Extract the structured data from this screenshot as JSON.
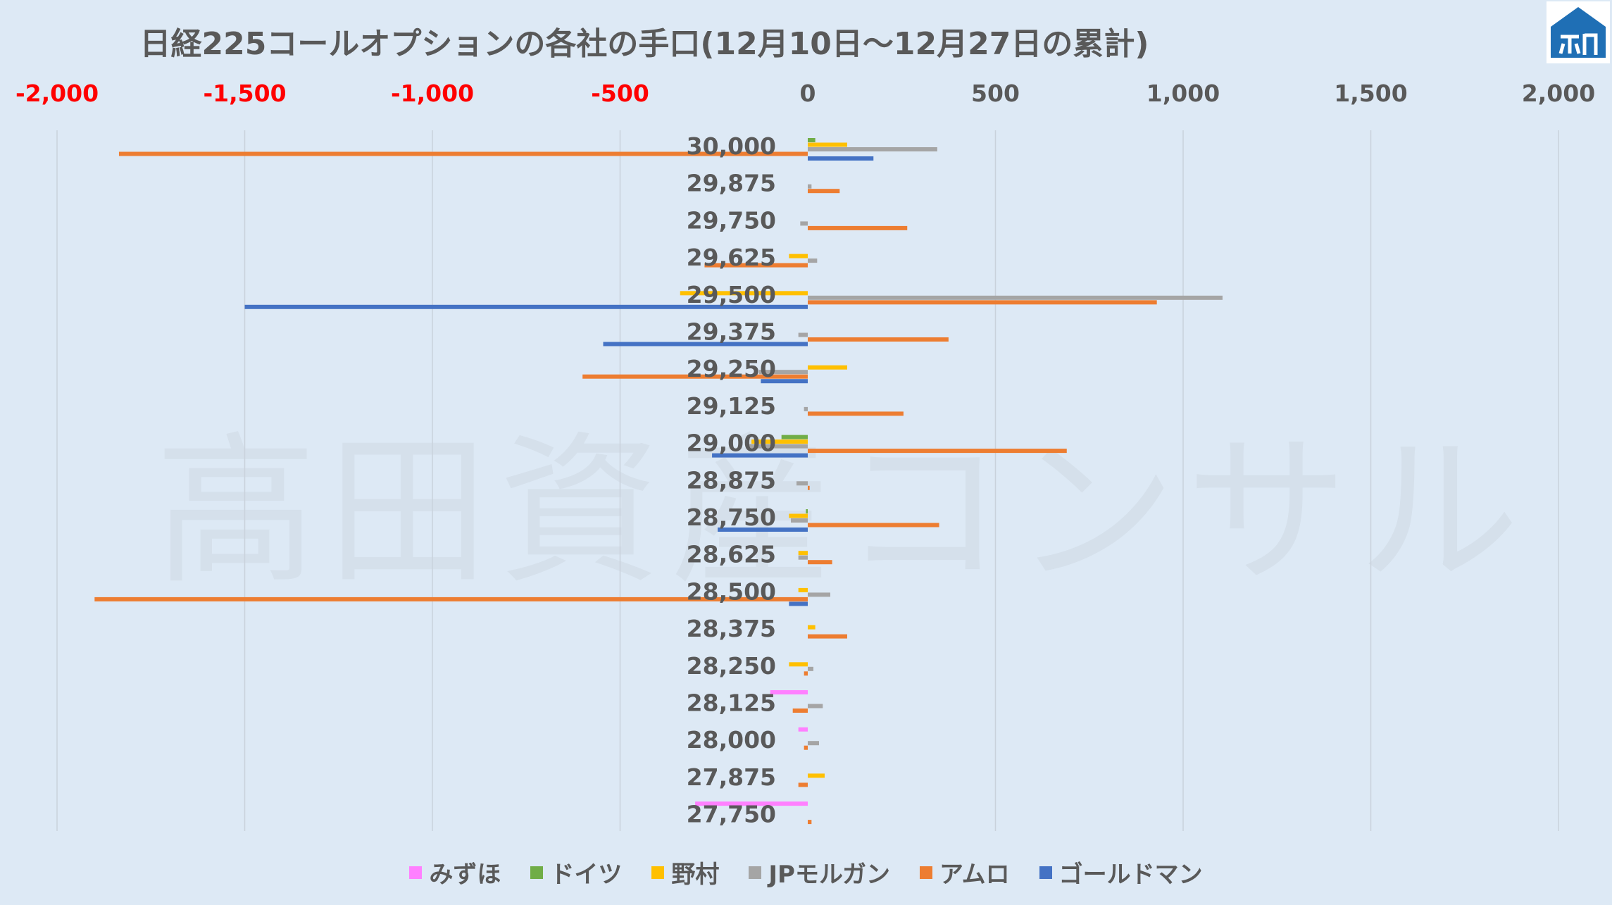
{
  "title": "日経225コールオプションの各社の手口(12月10日～12月27日の累計)",
  "watermark": "高田資産コンサル",
  "colors": {
    "background": "#dde9f5",
    "gridline": "#c9d2dc",
    "negative_tick": "#ff0000",
    "positive_tick": "#595959",
    "category_label": "#595959"
  },
  "chart_data": {
    "type": "bar",
    "orientation": "horizontal",
    "categories": [
      "30,000",
      "29,875",
      "29,750",
      "29,625",
      "29,500",
      "29,375",
      "29,250",
      "29,125",
      "29,000",
      "28,875",
      "28,750",
      "28,625",
      "28,500",
      "28,375",
      "28,250",
      "28,125",
      "28,000",
      "27,875",
      "27,750"
    ],
    "xlim": [
      -2000,
      2000
    ],
    "x_ticks": [
      "-2,000",
      "-1,500",
      "-1,000",
      "-500",
      "0",
      "500",
      "1,000",
      "1,500",
      "2,000"
    ],
    "x_tick_values": [
      -2000,
      -1500,
      -1000,
      -500,
      0,
      500,
      1000,
      1500,
      2000
    ],
    "grid": true,
    "legend_position": "bottom",
    "series": [
      {
        "name": "みずほ",
        "color": "#ff80ff",
        "values": [
          0,
          0,
          0,
          0,
          0,
          0,
          0,
          0,
          0,
          0,
          0,
          0,
          0,
          0,
          0,
          -100,
          -25,
          0,
          -300
        ]
      },
      {
        "name": "ドイツ",
        "color": "#70ad47",
        "values": [
          20,
          0,
          0,
          0,
          0,
          0,
          0,
          0,
          -70,
          0,
          -5,
          0,
          0,
          0,
          0,
          0,
          0,
          0,
          0
        ]
      },
      {
        "name": "野村",
        "color": "#ffc000",
        "values": [
          105,
          0,
          0,
          -50,
          -340,
          0,
          105,
          0,
          -150,
          0,
          -50,
          -25,
          -25,
          20,
          -50,
          0,
          0,
          45,
          0
        ]
      },
      {
        "name": "JPモルガン",
        "color": "#a5a5a5",
        "values": [
          345,
          10,
          -20,
          25,
          1105,
          -25,
          -130,
          -10,
          -160,
          -30,
          -45,
          -25,
          60,
          0,
          15,
          40,
          30,
          0,
          0
        ]
      },
      {
        "name": "アムロ",
        "color": "#ed7d31",
        "values": [
          -1835,
          85,
          265,
          -275,
          930,
          375,
          -600,
          255,
          690,
          5,
          350,
          65,
          -1900,
          105,
          -10,
          -40,
          -10,
          -25,
          10
        ]
      },
      {
        "name": "ゴールドマン",
        "color": "#4472c4",
        "values": [
          175,
          0,
          0,
          0,
          -1500,
          -545,
          -125,
          0,
          -255,
          0,
          -240,
          0,
          -50,
          0,
          0,
          0,
          0,
          0,
          0
        ]
      }
    ]
  }
}
